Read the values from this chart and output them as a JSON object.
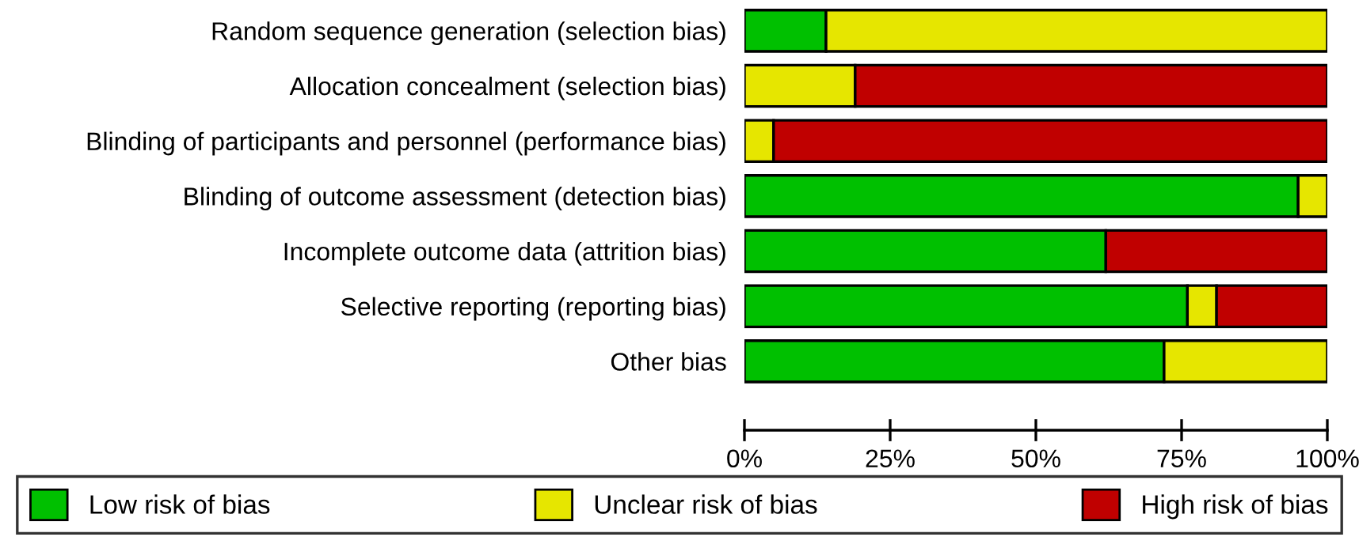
{
  "chart_data": {
    "type": "bar",
    "orientation": "horizontal",
    "stacked": true,
    "categories": [
      "Random sequence generation (selection bias)",
      "Allocation concealment (selection bias)",
      "Blinding of participants and personnel (performance bias)",
      "Blinding of outcome assessment (detection bias)",
      "Incomplete outcome data (attrition bias)",
      "Selective reporting (reporting bias)",
      "Other bias"
    ],
    "series": [
      {
        "name": "Low risk of bias",
        "color": "#00c000",
        "values": [
          14,
          null,
          null,
          95,
          62,
          76,
          72
        ]
      },
      {
        "name": "Unclear risk of bias",
        "color": "#e6e600",
        "values": [
          86,
          19,
          5,
          5,
          null,
          5,
          28
        ]
      },
      {
        "name": "High risk of bias",
        "color": "#c00000",
        "values": [
          null,
          81,
          95,
          null,
          38,
          19,
          null
        ]
      }
    ],
    "xlim": [
      0,
      100
    ],
    "xticks": [
      {
        "value": 0,
        "label": "0%"
      },
      {
        "value": 25,
        "label": "25%"
      },
      {
        "value": 50,
        "label": "50%"
      },
      {
        "value": 75,
        "label": "75%"
      },
      {
        "value": 100,
        "label": "100%"
      }
    ],
    "grid": false,
    "legend": "bottom"
  }
}
